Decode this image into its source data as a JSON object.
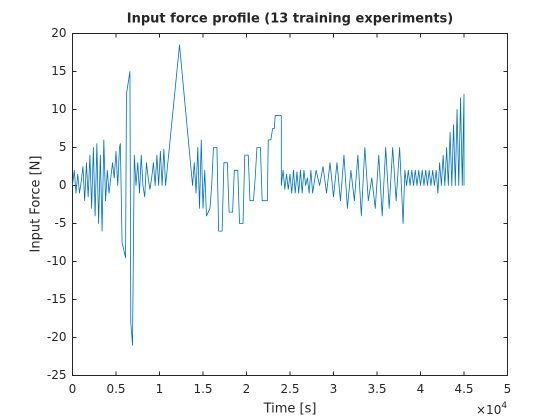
{
  "chart_data": {
    "type": "line",
    "title": "Input force profile (13 training experiments)",
    "x_label": "Time [s]",
    "y_label": "Input Force [N]",
    "x_exponent_base": "×10",
    "x_exponent_power": "4",
    "xlim": [
      0,
      50000
    ],
    "ylim": [
      -25,
      20
    ],
    "xticks": [
      0,
      {
        "value": 5000,
        "label": "0.5"
      },
      {
        "value": 10000,
        "label": "1"
      },
      {
        "value": 15000,
        "label": "1.5"
      },
      {
        "value": 20000,
        "label": "2"
      },
      {
        "value": 25000,
        "label": "2.5"
      },
      {
        "value": 30000,
        "label": "3"
      },
      {
        "value": 35000,
        "label": "3.5"
      },
      {
        "value": 40000,
        "label": "4"
      },
      {
        "value": 45000,
        "label": "4.5"
      },
      {
        "value": 50000,
        "label": "5"
      }
    ],
    "yticks": [
      -25,
      -20,
      -15,
      -10,
      -5,
      0,
      5,
      10,
      15,
      20
    ],
    "grid": false,
    "x": [
      0,
      200,
      400,
      600,
      800,
      1000,
      1200,
      1400,
      1600,
      1800,
      2000,
      2200,
      2400,
      2600,
      2800,
      3000,
      3200,
      3400,
      3600,
      3800,
      4000,
      4200,
      4400,
      4600,
      4800,
      5000,
      5200,
      5400,
      5500,
      5700,
      6100,
      6200,
      6600,
      6700,
      6900,
      7100,
      7300,
      7500,
      7700,
      7900,
      8100,
      8300,
      8500,
      8700,
      8900,
      9100,
      9300,
      9500,
      9700,
      9900,
      10100,
      10300,
      10500,
      10700,
      12300,
      13800,
      14000,
      14200,
      14400,
      14600,
      14800,
      15000,
      15200,
      15400,
      15800,
      16000,
      16200,
      16600,
      16800,
      17200,
      17400,
      17800,
      18000,
      18400,
      18600,
      19000,
      19200,
      19600,
      19800,
      20200,
      20400,
      20800,
      21000,
      21200,
      21600,
      21800,
      22400,
      22500,
      22800,
      23000,
      23200,
      23300,
      24000,
      24000,
      24200,
      24400,
      24600,
      24800,
      25000,
      25200,
      25400,
      25600,
      25800,
      26000,
      26200,
      26400,
      26600,
      26800,
      27000,
      27200,
      27400,
      27600,
      28000,
      28400,
      28800,
      29200,
      29600,
      30000,
      30400,
      30800,
      31200,
      31600,
      32000,
      32400,
      32800,
      33200,
      33600,
      34000,
      34400,
      34800,
      35200,
      35600,
      36000,
      36400,
      36800,
      37200,
      37600,
      38000,
      38200,
      38400,
      38600,
      38800,
      39000,
      39200,
      39400,
      39600,
      39800,
      40000,
      40200,
      40400,
      40600,
      40800,
      41000,
      41200,
      41400,
      41600,
      41800,
      42000,
      42200,
      42400,
      42600,
      42800,
      43000,
      43200,
      43400,
      43600,
      43800,
      44000,
      44200,
      44400,
      44600,
      44800,
      45000,
      45000
    ],
    "series": [
      {
        "name": "Input force",
        "color": "#0072bd",
        "values": [
          0,
          2,
          -1,
          1.5,
          -1,
          0.5,
          2.5,
          -2,
          3,
          -1.5,
          4,
          -3,
          5,
          -4,
          5.5,
          -5,
          4,
          -6,
          6,
          -2,
          2,
          -1,
          1,
          3,
          1,
          4.5,
          0,
          5,
          5.5,
          -7.5,
          -9.5,
          12,
          15,
          -18,
          -21,
          4,
          0,
          3,
          -1,
          4,
          0,
          -1.5,
          3,
          1,
          -0.5,
          1,
          3,
          0,
          4,
          0,
          4.5,
          0,
          4.8,
          0,
          18.5,
          0,
          3,
          -1,
          5,
          -3,
          6,
          -3,
          2,
          -4,
          -3,
          0,
          5,
          5,
          -6,
          -6,
          3,
          3,
          -3.5,
          -3.5,
          2,
          2,
          -5,
          -5,
          4,
          4,
          -2,
          -2,
          1,
          5,
          5,
          -2,
          -2,
          6,
          6,
          7.5,
          7.5,
          9.2,
          9.2,
          0,
          2,
          -0.5,
          1.5,
          -0.5,
          1.5,
          -1,
          2,
          -1,
          1.8,
          -1,
          2,
          -1,
          2,
          0,
          1,
          -1,
          2,
          -1,
          2,
          0,
          2.5,
          -1,
          3,
          -1.5,
          3,
          -2,
          4,
          -3,
          2,
          -2,
          4,
          -4,
          5,
          -2,
          1,
          -3,
          4,
          -4,
          5,
          -3,
          5,
          -2,
          5,
          -5,
          2,
          0,
          2,
          0,
          2,
          0,
          2,
          0,
          2,
          0,
          2,
          0,
          2,
          0,
          2,
          0,
          2,
          0,
          2,
          -1,
          3,
          0,
          4,
          0,
          5,
          0,
          7,
          0,
          8,
          0,
          10,
          0,
          11.5,
          0,
          12,
          0
        ]
      }
    ]
  }
}
